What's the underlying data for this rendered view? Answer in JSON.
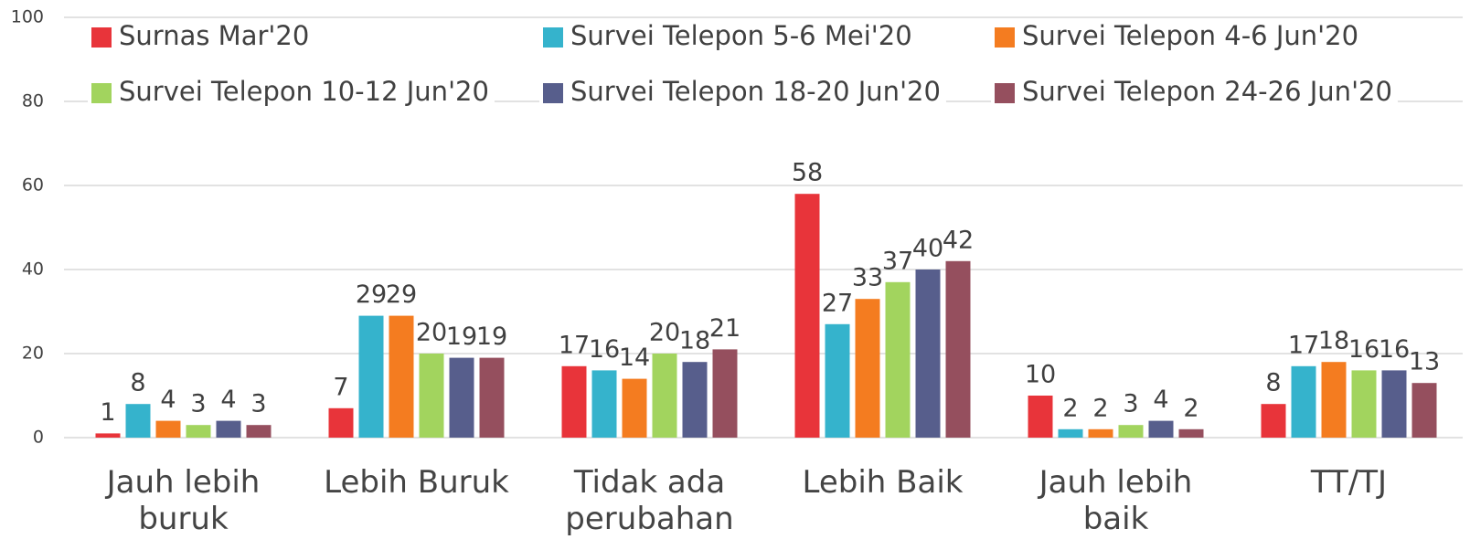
{
  "chart_data": {
    "type": "bar",
    "categories": [
      "Jauh lebih buruk",
      "Lebih Buruk",
      "Tidak ada perubahan",
      "Lebih Baik",
      "Jauh lebih baik",
      "TT/TJ"
    ],
    "series": [
      {
        "name": "Surnas Mar'20",
        "color": "#e8343a",
        "values": [
          1,
          7,
          17,
          58,
          10,
          8
        ]
      },
      {
        "name": "Survei Telepon 5-6 Mei'20",
        "color": "#35b3cc",
        "values": [
          8,
          29,
          16,
          27,
          2,
          17
        ]
      },
      {
        "name": "Survei Telepon 4-6 Jun'20",
        "color": "#f47c20",
        "values": [
          4,
          29,
          14,
          33,
          2,
          18
        ]
      },
      {
        "name": "Survei Telepon 10-12 Jun'20",
        "color": "#a2d45e",
        "values": [
          3,
          20,
          20,
          37,
          3,
          16
        ]
      },
      {
        "name": "Survei Telepon 18-20 Jun'20",
        "color": "#575e8c",
        "values": [
          4,
          19,
          18,
          40,
          4,
          16
        ]
      },
      {
        "name": "Survei Telepon 24-26 Jun'20",
        "color": "#954f5e",
        "values": [
          3,
          19,
          21,
          42,
          2,
          13
        ]
      }
    ],
    "ylim": [
      0,
      100
    ],
    "yticks": [
      0,
      20,
      40,
      60,
      80,
      100
    ],
    "grid": true
  }
}
